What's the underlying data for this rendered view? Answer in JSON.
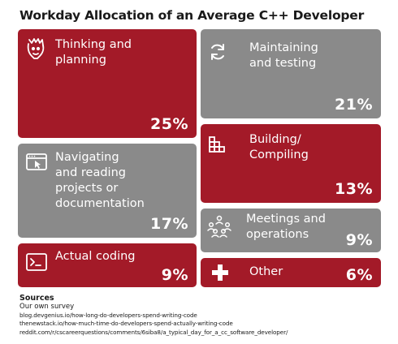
{
  "title": "Workday Allocation of an Average C++ Developer",
  "colors": {
    "red": "#a31a28",
    "grey": "#8a8a8a"
  },
  "chart_data": {
    "type": "treemap",
    "title": "Workday Allocation of an Average C++ Developer",
    "unit": "%",
    "items": [
      {
        "label": "Thinking and planning",
        "value": 25,
        "display": "25%",
        "color": "red",
        "icon": "brain-head-icon"
      },
      {
        "label": "Maintaining and testing",
        "value": 21,
        "display": "21%",
        "color": "grey",
        "icon": "refresh-icon"
      },
      {
        "label": "Building/ Compiling",
        "value": 13,
        "display": "13%",
        "color": "red",
        "icon": "blocks-icon"
      },
      {
        "label": "Navigating and reading projects or documentation",
        "value": 17,
        "display": "17%",
        "color": "grey",
        "icon": "browser-cursor-icon"
      },
      {
        "label": "Meetings and operations",
        "value": 9,
        "display": "9%",
        "color": "grey",
        "icon": "people-meeting-icon"
      },
      {
        "label": "Actual coding",
        "value": 9,
        "display": "9%",
        "color": "red",
        "icon": "terminal-icon"
      },
      {
        "label": "Other",
        "value": 6,
        "display": "6%",
        "color": "red",
        "icon": "plus-icon"
      }
    ]
  },
  "tiles": {
    "thinking": {
      "label": "Thinking and\nplanning",
      "pct": "25%"
    },
    "maintaining": {
      "label": "Maintaining\nand testing",
      "pct": "21%"
    },
    "building": {
      "label": "Building/\nCompiling",
      "pct": "13%"
    },
    "navigating": {
      "label": "Navigating\nand reading\nprojects or\ndocumentation",
      "pct": "17%"
    },
    "meetings": {
      "label": "Meetings and\noperations",
      "pct": "9%"
    },
    "coding": {
      "label": "Actual coding",
      "pct": "9%"
    },
    "other": {
      "label": "Other",
      "pct": "6%"
    }
  },
  "sources": {
    "title": "Sources",
    "lines": [
      "Our own survey",
      "blog.devgenius.io/how-long-do-developers-spend-writing-code",
      "thenewstack.io/how-much-time-do-developers-spend-actually-writing-code",
      "reddit.com/r/cscareerquestions/comments/6siba8/a_typical_day_for_a_cc_software_developer/"
    ]
  }
}
